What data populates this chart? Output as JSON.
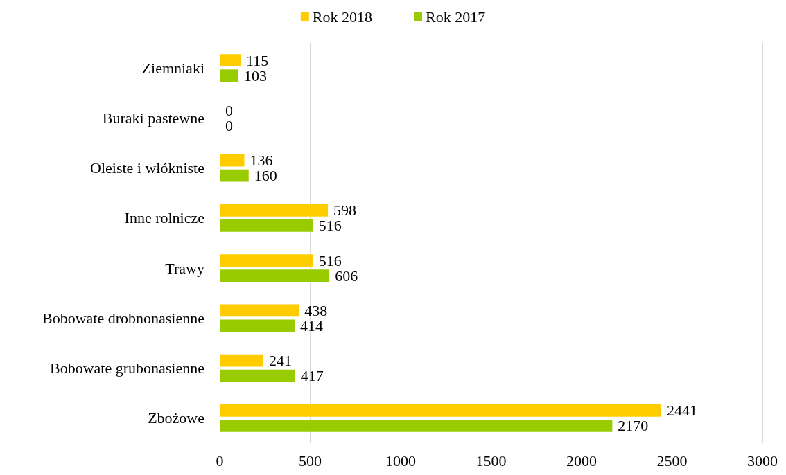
{
  "chart_data": {
    "type": "bar",
    "orientation": "horizontal",
    "categories": [
      "Ziemniaki",
      "Buraki pastewne",
      "Oleiste i włókniste",
      "Inne rolnicze",
      "Trawy",
      "Bobowate drobnonasienne",
      "Bobowate grubonasienne",
      "Zbożowe"
    ],
    "series": [
      {
        "name": "Rok 2018",
        "color": "#ffcc00",
        "values": [
          115,
          0,
          136,
          598,
          516,
          438,
          241,
          2441
        ]
      },
      {
        "name": "Rok 2017",
        "color": "#99cc00",
        "values": [
          103,
          0,
          160,
          516,
          606,
          414,
          417,
          2170
        ]
      }
    ],
    "xlim": [
      0,
      3000
    ],
    "xticks": [
      0,
      500,
      1000,
      1500,
      2000,
      2500,
      3000
    ],
    "grid": "x",
    "legend": "top",
    "data_labels": true
  }
}
